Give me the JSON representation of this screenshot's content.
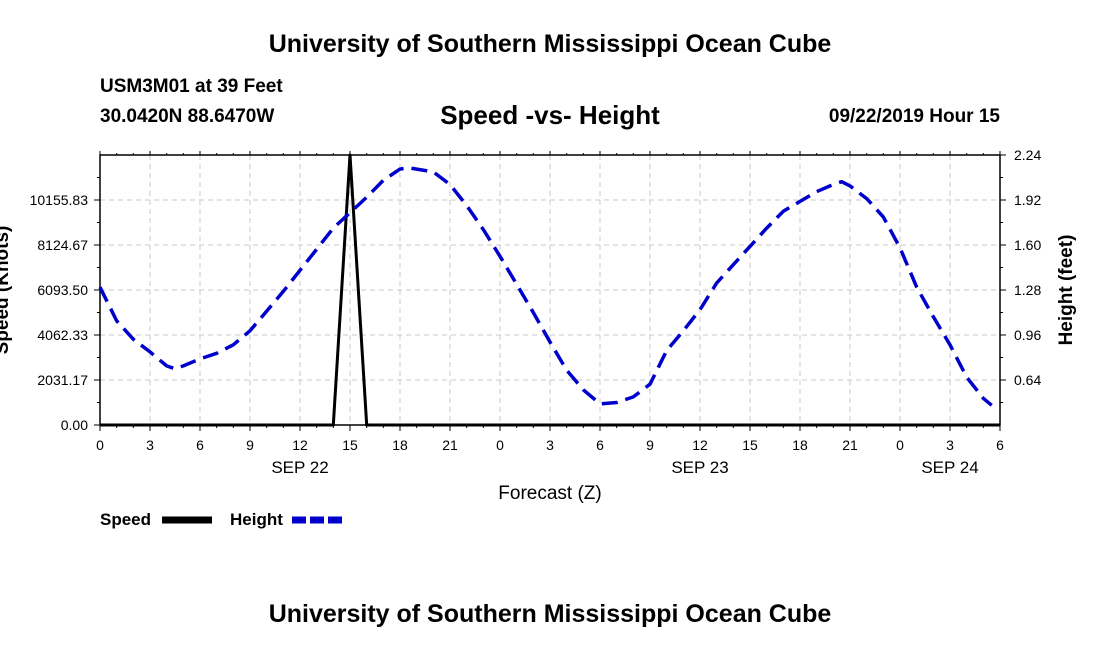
{
  "header": {
    "title": "University of Southern Mississippi Ocean Cube",
    "station": "USM3M01 at 39 Feet",
    "coordinates": "30.0420N 88.6470W",
    "subtitle": "Speed -vs- Height",
    "datetime": "09/22/2019 Hour 15"
  },
  "footer": {
    "title": "University of Southern Mississippi Ocean Cube"
  },
  "chart_data": {
    "type": "line",
    "title": "Speed -vs- Height",
    "xlabel": "Forecast (Z)",
    "ylabel_left": "Speed (Knots)",
    "ylabel_right": "Height (feet)",
    "x_range_hours": [
      0,
      54
    ],
    "x_ticks": [
      {
        "h": 0,
        "label": "0"
      },
      {
        "h": 3,
        "label": "3"
      },
      {
        "h": 6,
        "label": "6"
      },
      {
        "h": 9,
        "label": "9"
      },
      {
        "h": 12,
        "label": "12"
      },
      {
        "h": 15,
        "label": "15"
      },
      {
        "h": 18,
        "label": "18"
      },
      {
        "h": 21,
        "label": "21"
      },
      {
        "h": 24,
        "label": "0"
      },
      {
        "h": 27,
        "label": "3"
      },
      {
        "h": 30,
        "label": "6"
      },
      {
        "h": 33,
        "label": "9"
      },
      {
        "h": 36,
        "label": "12"
      },
      {
        "h": 39,
        "label": "15"
      },
      {
        "h": 42,
        "label": "18"
      },
      {
        "h": 45,
        "label": "21"
      },
      {
        "h": 48,
        "label": "0"
      },
      {
        "h": 51,
        "label": "3"
      },
      {
        "h": 54,
        "label": "6"
      }
    ],
    "date_labels": [
      {
        "h": 12,
        "label": "SEP 22"
      },
      {
        "h": 36,
        "label": "SEP 23"
      },
      {
        "h": 51,
        "label": "SEP 24"
      }
    ],
    "y_left": {
      "range": [
        0,
        12187
      ],
      "ticks": [
        0.0,
        2031.17,
        4062.33,
        6093.5,
        8124.67,
        10155.83
      ],
      "tick_labels": [
        "0.00",
        "2031.17",
        "4062.33",
        "6093.50",
        "8124.67",
        "10155.83"
      ]
    },
    "y_right": {
      "range": [
        0.32,
        2.24
      ],
      "ticks": [
        0.64,
        0.96,
        1.28,
        1.6,
        1.92,
        2.24
      ],
      "tick_labels": [
        "0.64",
        "0.96",
        "1.28",
        "1.60",
        "1.92",
        "2.24"
      ]
    },
    "series": [
      {
        "name": "Speed",
        "axis": "left",
        "color": "#000000",
        "style": "solid",
        "points": [
          [
            0,
            0
          ],
          [
            14,
            0
          ],
          [
            15,
            12187
          ],
          [
            16,
            0
          ],
          [
            54,
            0
          ]
        ]
      },
      {
        "name": "Height",
        "axis": "right",
        "color": "#0000cc",
        "style": "dashed",
        "points": [
          [
            0,
            1.3
          ],
          [
            1,
            1.06
          ],
          [
            2,
            0.93
          ],
          [
            3,
            0.84
          ],
          [
            4,
            0.74
          ],
          [
            4.5,
            0.72
          ],
          [
            5,
            0.74
          ],
          [
            6,
            0.79
          ],
          [
            7,
            0.83
          ],
          [
            8,
            0.89
          ],
          [
            9,
            0.99
          ],
          [
            10,
            1.13
          ],
          [
            11,
            1.27
          ],
          [
            12,
            1.42
          ],
          [
            13,
            1.57
          ],
          [
            14,
            1.72
          ],
          [
            15,
            1.83
          ],
          [
            16,
            1.94
          ],
          [
            17,
            2.06
          ],
          [
            18,
            2.14
          ],
          [
            18.5,
            2.15
          ],
          [
            19,
            2.14
          ],
          [
            20,
            2.12
          ],
          [
            21,
            2.03
          ],
          [
            22,
            1.88
          ],
          [
            23,
            1.71
          ],
          [
            24,
            1.52
          ],
          [
            25,
            1.32
          ],
          [
            26,
            1.12
          ],
          [
            27,
            0.91
          ],
          [
            28,
            0.71
          ],
          [
            29,
            0.57
          ],
          [
            30,
            0.47
          ],
          [
            31,
            0.48
          ],
          [
            32,
            0.52
          ],
          [
            33,
            0.61
          ],
          [
            34,
            0.85
          ],
          [
            35,
            0.99
          ],
          [
            36,
            1.14
          ],
          [
            37,
            1.33
          ],
          [
            38,
            1.46
          ],
          [
            39,
            1.59
          ],
          [
            40,
            1.72
          ],
          [
            41,
            1.84
          ],
          [
            42,
            1.91
          ],
          [
            43,
            1.98
          ],
          [
            44,
            2.03
          ],
          [
            44.5,
            2.05
          ],
          [
            45,
            2.02
          ],
          [
            46,
            1.93
          ],
          [
            47,
            1.8
          ],
          [
            48,
            1.58
          ],
          [
            49,
            1.3
          ],
          [
            50,
            1.09
          ],
          [
            51,
            0.89
          ],
          [
            52,
            0.66
          ],
          [
            53,
            0.51
          ],
          [
            53.5,
            0.46
          ]
        ]
      }
    ],
    "legend": [
      {
        "label": "Speed",
        "color": "#000000",
        "style": "solid"
      },
      {
        "label": "Height",
        "color": "#0000cc",
        "style": "dashed"
      }
    ],
    "grid": true
  }
}
